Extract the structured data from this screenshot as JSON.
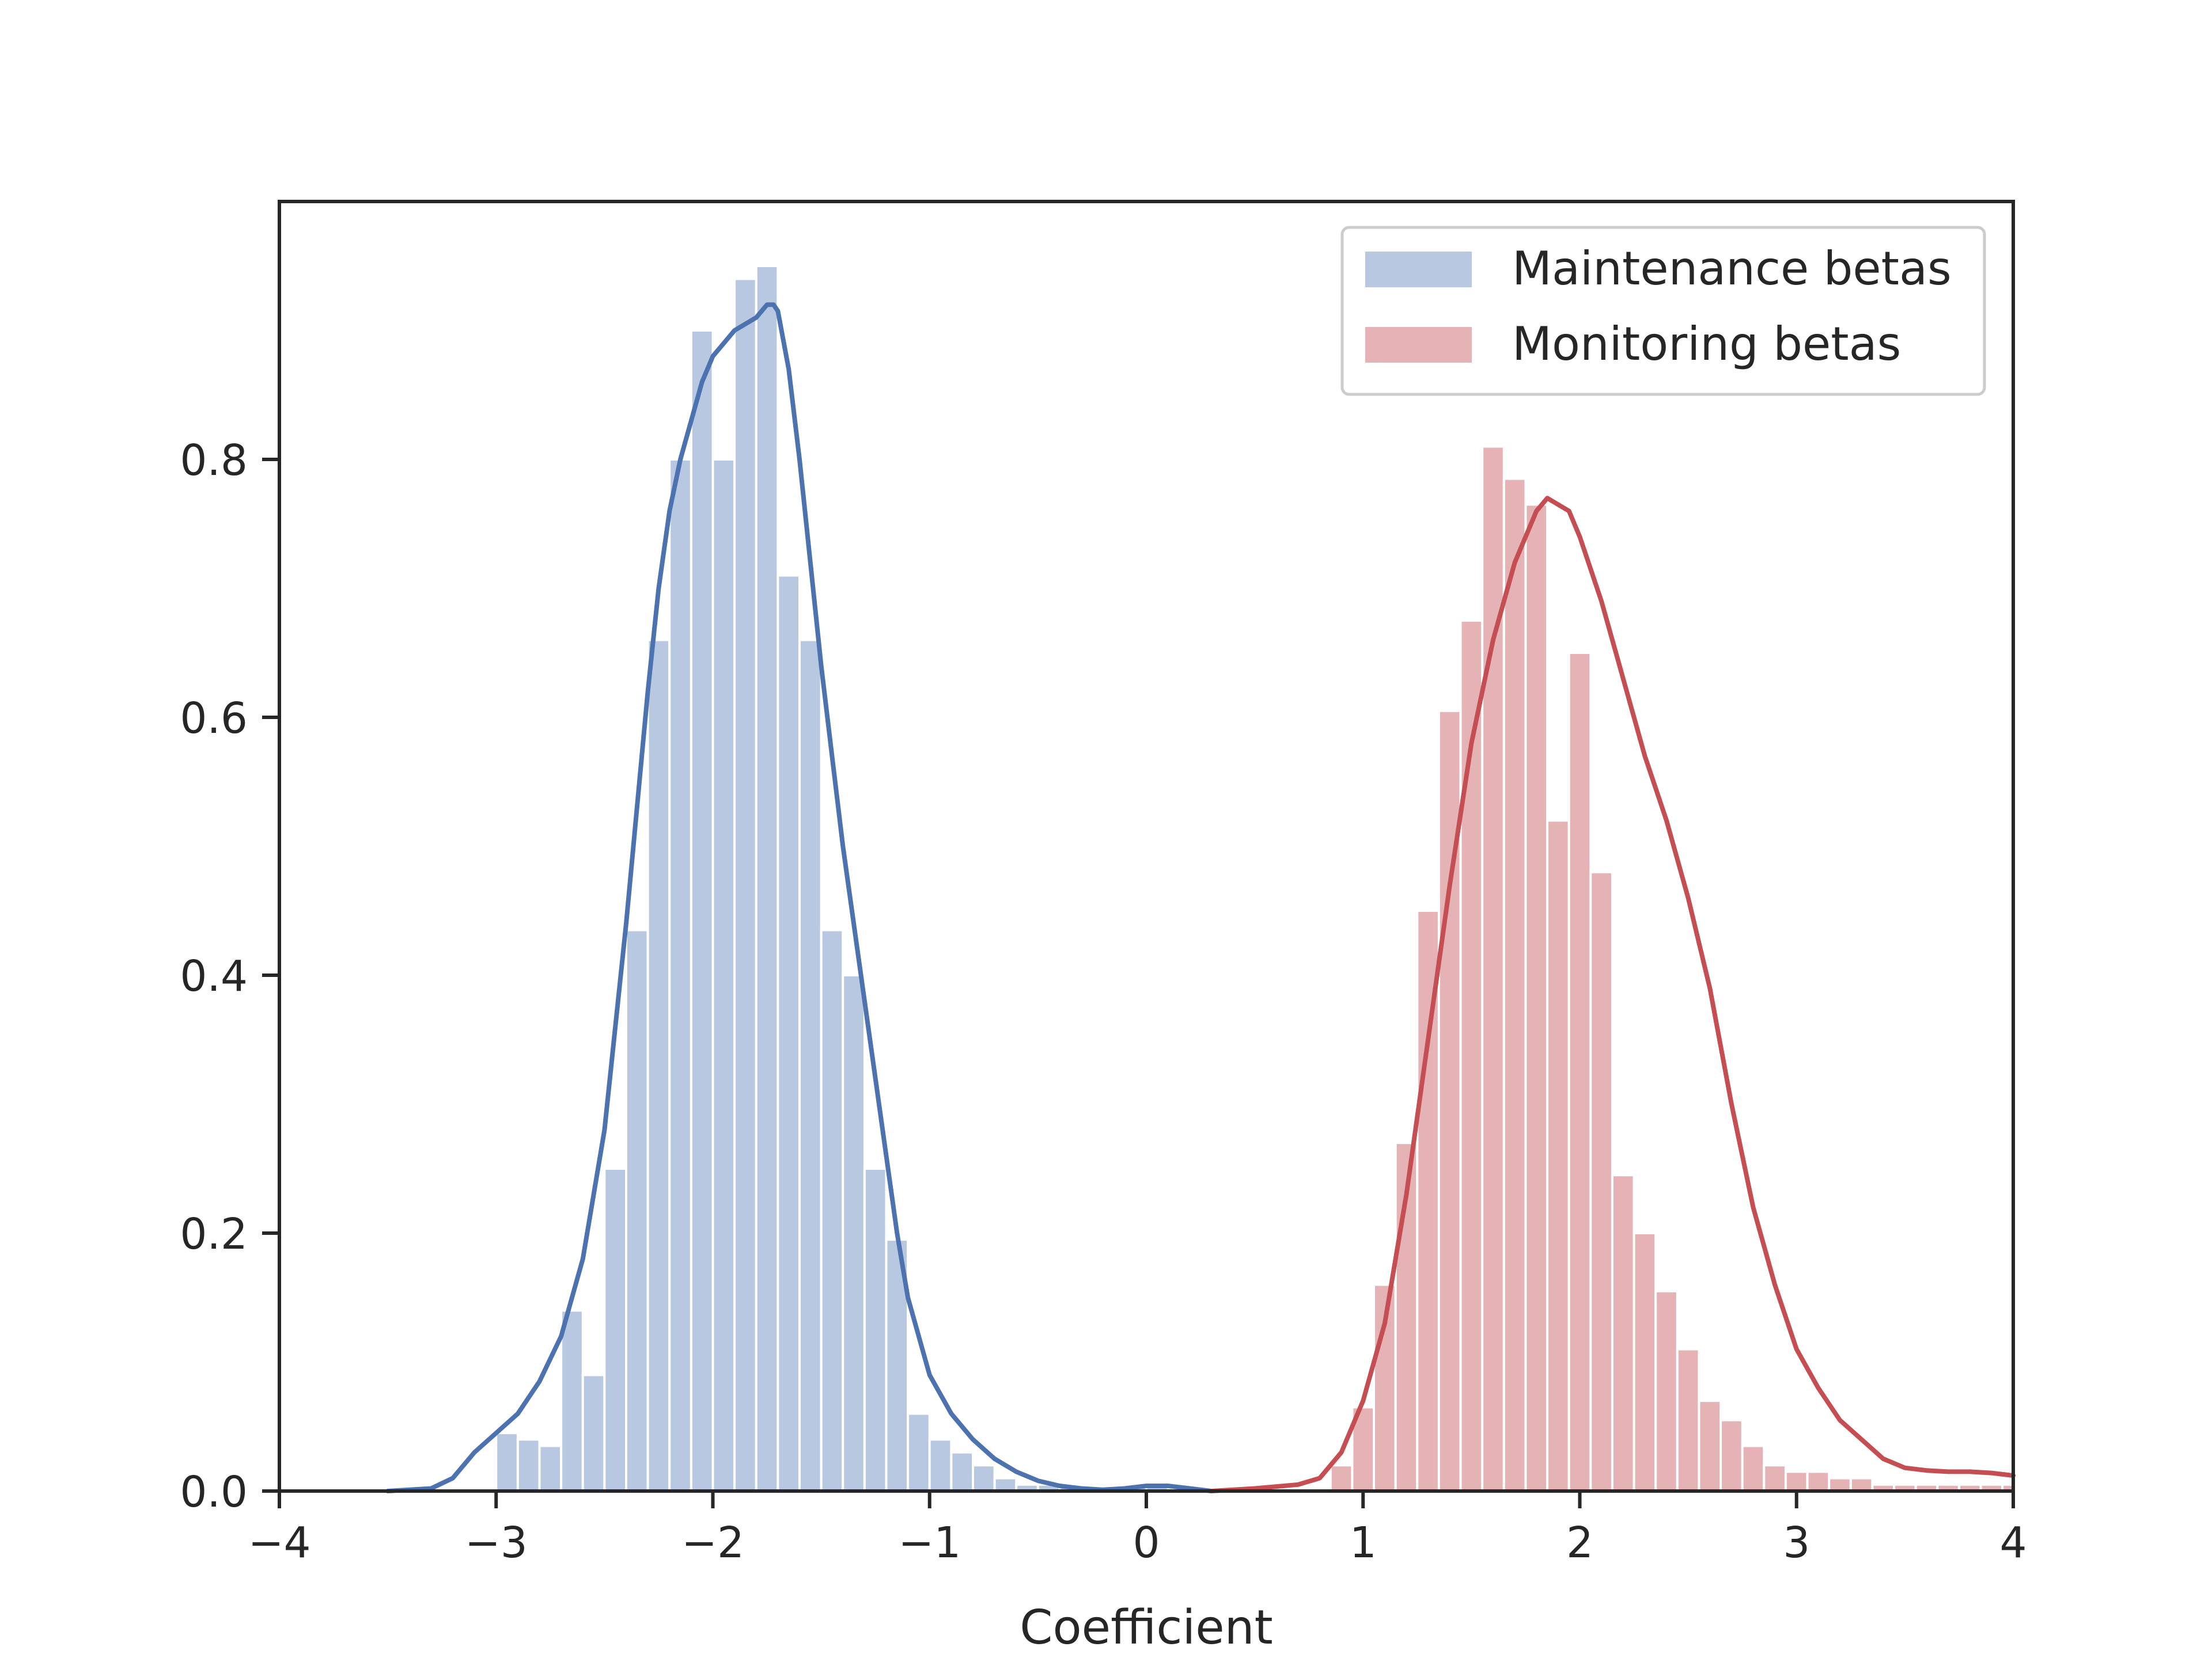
{
  "chart_data": {
    "type": "bar",
    "title": "",
    "xlabel": "Coefficient",
    "ylabel": "",
    "xlim": [
      -4,
      4
    ],
    "ylim": [
      0,
      1.0
    ],
    "grid": false,
    "legend_position": "top-right",
    "x_ticks": [
      -4,
      -3,
      -2,
      -1,
      0,
      1,
      2,
      3,
      4
    ],
    "x_tick_labels": [
      "−4",
      "−3",
      "−2",
      "−1",
      "0",
      "1",
      "2",
      "3",
      "4"
    ],
    "y_ticks": [
      0.0,
      0.2,
      0.4,
      0.6,
      0.8
    ],
    "y_tick_labels": [
      "0.0",
      "0.2",
      "0.4",
      "0.6",
      "0.8"
    ],
    "series": [
      {
        "name": "Maintenance betas",
        "hist_color": "#b8c8e1",
        "kde_color": "#4c72b0",
        "bin_edges": [
          -3.0,
          -2.9,
          -2.8,
          -2.7,
          -2.6,
          -2.5,
          -2.4,
          -2.3,
          -2.2,
          -2.1,
          -2.0,
          -1.9,
          -1.8,
          -1.7,
          -1.6,
          -1.5,
          -1.4,
          -1.3,
          -1.2,
          -1.1,
          -1.0,
          -0.9,
          -0.8,
          -0.7,
          -0.6,
          -0.5,
          -0.4,
          -0.3,
          -0.2,
          -0.1,
          0.0,
          0.1
        ],
        "hist_values": [
          0.045,
          0.04,
          0.035,
          0.14,
          0.09,
          0.25,
          0.435,
          0.66,
          0.8,
          0.9,
          0.8,
          0.94,
          0.95,
          0.71,
          0.66,
          0.435,
          0.4,
          0.25,
          0.195,
          0.06,
          0.04,
          0.03,
          0.02,
          0.01,
          0.005,
          0.005,
          0.003,
          0.0,
          0.0,
          0.005,
          0.005
        ],
        "kde_x": [
          -3.5,
          -3.3,
          -3.2,
          -3.1,
          -3.0,
          -2.9,
          -2.8,
          -2.7,
          -2.6,
          -2.5,
          -2.45,
          -2.4,
          -2.35,
          -2.3,
          -2.25,
          -2.2,
          -2.15,
          -2.1,
          -2.05,
          -2.0,
          -1.95,
          -1.9,
          -1.85,
          -1.8,
          -1.75,
          -1.72,
          -1.7,
          -1.65,
          -1.6,
          -1.55,
          -1.5,
          -1.45,
          -1.4,
          -1.35,
          -1.3,
          -1.25,
          -1.2,
          -1.15,
          -1.1,
          -1.0,
          -0.9,
          -0.8,
          -0.7,
          -0.6,
          -0.5,
          -0.4,
          -0.3,
          -0.2,
          -0.1,
          0.0,
          0.1,
          0.2,
          0.3
        ],
        "kde_y": [
          0.0,
          0.002,
          0.01,
          0.03,
          0.045,
          0.06,
          0.085,
          0.12,
          0.18,
          0.28,
          0.36,
          0.44,
          0.53,
          0.62,
          0.7,
          0.76,
          0.8,
          0.83,
          0.86,
          0.88,
          0.89,
          0.9,
          0.905,
          0.91,
          0.92,
          0.92,
          0.915,
          0.87,
          0.8,
          0.72,
          0.64,
          0.57,
          0.5,
          0.44,
          0.38,
          0.32,
          0.26,
          0.2,
          0.15,
          0.09,
          0.06,
          0.04,
          0.025,
          0.015,
          0.008,
          0.004,
          0.002,
          0.001,
          0.002,
          0.004,
          0.004,
          0.002,
          0.0
        ]
      },
      {
        "name": "Monitoring betas",
        "hist_color": "#e5b3b5",
        "kde_color": "#c44e52",
        "bin_edges": [
          0.85,
          0.95,
          1.05,
          1.15,
          1.25,
          1.35,
          1.45,
          1.55,
          1.65,
          1.75,
          1.85,
          1.95,
          2.05,
          2.15,
          2.25,
          2.35,
          2.45,
          2.55,
          2.65,
          2.75,
          2.85,
          2.95,
          3.05,
          3.15,
          3.25,
          3.35,
          3.45,
          3.55,
          3.65,
          3.75,
          3.85,
          3.95,
          4.05
        ],
        "hist_values": [
          0.02,
          0.065,
          0.16,
          0.27,
          0.45,
          0.605,
          0.675,
          0.81,
          0.785,
          0.765,
          0.52,
          0.65,
          0.48,
          0.245,
          0.2,
          0.155,
          0.11,
          0.07,
          0.055,
          0.035,
          0.02,
          0.015,
          0.015,
          0.01,
          0.01,
          0.005,
          0.005,
          0.005,
          0.005,
          0.005,
          0.005,
          0.005
        ],
        "kde_x": [
          0.3,
          0.5,
          0.7,
          0.8,
          0.9,
          1.0,
          1.1,
          1.2,
          1.3,
          1.4,
          1.5,
          1.6,
          1.7,
          1.8,
          1.85,
          1.9,
          1.95,
          2.0,
          2.1,
          2.2,
          2.3,
          2.4,
          2.5,
          2.6,
          2.7,
          2.8,
          2.9,
          3.0,
          3.1,
          3.2,
          3.3,
          3.4,
          3.5,
          3.6,
          3.7,
          3.8,
          3.9,
          4.0
        ],
        "kde_y": [
          0.0,
          0.002,
          0.005,
          0.01,
          0.03,
          0.07,
          0.13,
          0.23,
          0.35,
          0.47,
          0.58,
          0.66,
          0.72,
          0.76,
          0.77,
          0.765,
          0.76,
          0.74,
          0.69,
          0.63,
          0.57,
          0.52,
          0.46,
          0.39,
          0.3,
          0.22,
          0.16,
          0.11,
          0.08,
          0.055,
          0.04,
          0.025,
          0.018,
          0.016,
          0.015,
          0.015,
          0.014,
          0.012
        ]
      }
    ]
  }
}
